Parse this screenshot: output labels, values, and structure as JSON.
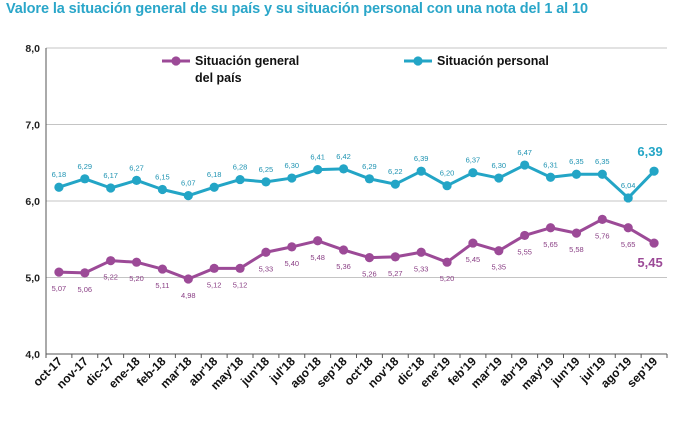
{
  "chart_data": {
    "type": "line",
    "title": "Valore la situación general de  su país  y su situación personal con una nota del  1 al  10",
    "categories": [
      "oct-17",
      "nov-17",
      "dic-17",
      "ene-18",
      "feb-18",
      "mar'18",
      "abr'18",
      "may'18",
      "jun'18",
      "jul'18",
      "ago'18",
      "sep'18",
      "oct'18",
      "nov'18",
      "dic'18",
      "ene'19",
      "feb'19",
      "mar'19",
      "abr'19",
      "may'19",
      "jun'19",
      "jul'19",
      "ago'19",
      "sep'19"
    ],
    "series": [
      {
        "name_lines": [
          "Situación general",
          "del país"
        ],
        "color": "#9c4a97",
        "values": [
          5.07,
          5.06,
          5.22,
          5.2,
          5.11,
          4.98,
          5.12,
          5.12,
          5.33,
          5.4,
          5.48,
          5.36,
          5.26,
          5.27,
          5.33,
          5.2,
          5.45,
          5.35,
          5.55,
          5.65,
          5.58,
          5.76,
          5.65,
          5.45
        ],
        "labels": [
          "5,07",
          "5,06",
          "5,22",
          "5,20",
          "5,11",
          "4,98",
          "5,12",
          "5,12",
          "5,33",
          "5,40",
          "5,48",
          "5,36",
          "5,26",
          "5,27",
          "5,33",
          "5,20",
          "5,45",
          "5,35",
          "5,55",
          "5,65",
          "5,58",
          "5,76",
          "5,65",
          "5,45"
        ]
      },
      {
        "name_lines": [
          "Situación personal"
        ],
        "color": "#23a5c6",
        "values": [
          6.18,
          6.29,
          6.17,
          6.27,
          6.15,
          6.07,
          6.18,
          6.28,
          6.25,
          6.3,
          6.41,
          6.42,
          6.29,
          6.22,
          6.39,
          6.2,
          6.37,
          6.3,
          6.47,
          6.31,
          6.35,
          6.35,
          6.04,
          6.39
        ],
        "labels": [
          "6,18",
          "6,29",
          "6,17",
          "6,27",
          "6,15",
          "6,07",
          "6,18",
          "6,28",
          "6,25",
          "6,30",
          "6,41",
          "6,42",
          "6,29",
          "6,22",
          "6,39",
          "6,20",
          "6,37",
          "6,30",
          "6,47",
          "6,31",
          "6,35",
          "6,35",
          "6,04",
          "6,39"
        ]
      }
    ],
    "ylim": [
      4.0,
      8.0
    ],
    "yticks": [
      4.0,
      5.0,
      6.0,
      7.0,
      8.0
    ],
    "ytick_labels": [
      "4,0",
      "5,0",
      "6,0",
      "7,0",
      "8,0"
    ],
    "grid": true,
    "legend_position": "top"
  }
}
